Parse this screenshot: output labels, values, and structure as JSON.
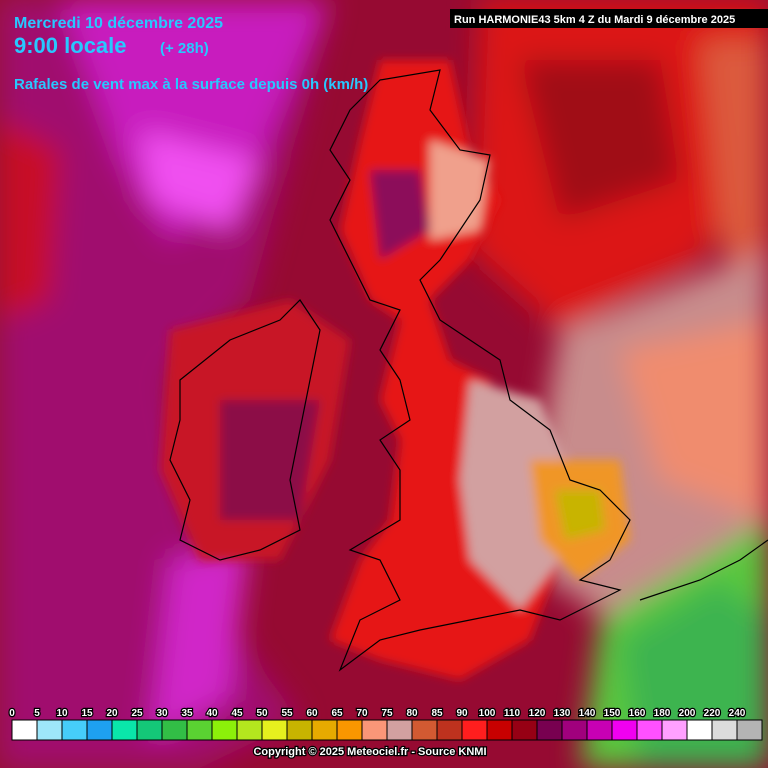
{
  "header": {
    "date": "Mercredi 10 décembre 2025",
    "time": "9:00 locale",
    "lead": "(+ 28h)",
    "subtitle": "Rafales de vent max à la surface depuis 0h (km/h)",
    "run": "Run HARMONIE43 5km 4 Z du Mardi 9 décembre 2025"
  },
  "legend": {
    "items": [
      {
        "value": 0,
        "color": "#ffffff"
      },
      {
        "value": 5,
        "color": "#9ee6fa"
      },
      {
        "value": 10,
        "color": "#46cdfa"
      },
      {
        "value": 15,
        "color": "#1ea0f0"
      },
      {
        "value": 20,
        "color": "#0ae6aa"
      },
      {
        "value": 25,
        "color": "#14c878"
      },
      {
        "value": 30,
        "color": "#32be46"
      },
      {
        "value": 35,
        "color": "#5ad232"
      },
      {
        "value": 40,
        "color": "#8cf00a"
      },
      {
        "value": 45,
        "color": "#b4e61e"
      },
      {
        "value": 50,
        "color": "#e6f01e"
      },
      {
        "value": 55,
        "color": "#c8b400"
      },
      {
        "value": 60,
        "color": "#e6aa00"
      },
      {
        "value": 65,
        "color": "#fa9600"
      },
      {
        "value": 70,
        "color": "#fa9678"
      },
      {
        "value": 75,
        "color": "#d2a0a0"
      },
      {
        "value": 80,
        "color": "#d25a32"
      },
      {
        "value": 85,
        "color": "#be321e"
      },
      {
        "value": 90,
        "color": "#ff1e1e"
      },
      {
        "value": 100,
        "color": "#c80000"
      },
      {
        "value": 110,
        "color": "#960014"
      },
      {
        "value": 120,
        "color": "#780050"
      },
      {
        "value": 130,
        "color": "#a0007d"
      },
      {
        "value": 140,
        "color": "#c800b4"
      },
      {
        "value": 150,
        "color": "#f000f0"
      },
      {
        "value": 160,
        "color": "#ff50ff"
      },
      {
        "value": 180,
        "color": "#ffa0ff"
      },
      {
        "value": 200,
        "color": "#ffffff"
      },
      {
        "value": 220,
        "color": "#dcdcdc"
      },
      {
        "value": 240,
        "color": "#b4b4b4"
      }
    ]
  },
  "footer": {
    "copyright": "Copyright © 2025 Meteociel.fr - Source KNMI"
  }
}
